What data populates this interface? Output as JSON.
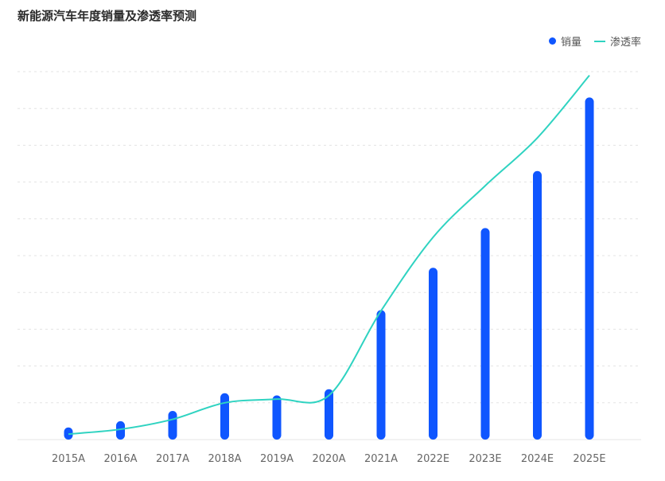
{
  "chart_data": {
    "type": "bar",
    "title": "新能源汽车年度销量及渗透率预测",
    "categories": [
      "2015A",
      "2016A",
      "2017A",
      "2018A",
      "2019A",
      "2020A",
      "2021A",
      "2022E",
      "2023E",
      "2024E",
      "2025E"
    ],
    "series": [
      {
        "name": "销量",
        "type": "bar",
        "color": "#0f56ff",
        "values": [
          0.33,
          0.5,
          0.78,
          1.26,
          1.2,
          1.37,
          3.52,
          4.67,
          5.75,
          7.3,
          9.3
        ]
      },
      {
        "name": "渗透率",
        "type": "line",
        "color": "#2fd3c1",
        "values": [
          0.15,
          0.28,
          0.55,
          1.0,
          1.1,
          1.2,
          3.5,
          5.5,
          6.9,
          8.2,
          9.9
        ]
      }
    ],
    "ylim": [
      0,
      10
    ],
    "grid": true,
    "legend_position": "top-right"
  }
}
